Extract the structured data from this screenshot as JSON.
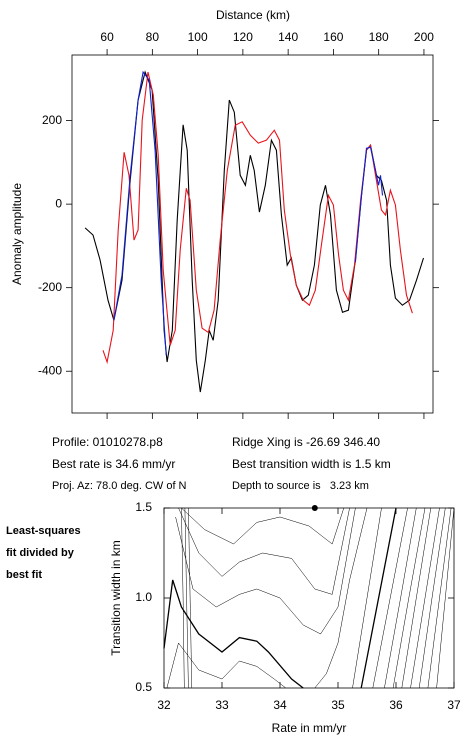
{
  "chart_data": [
    {
      "type": "line",
      "x_label": "Distance (km)",
      "y_label": "Anomaly amplitude",
      "xlim": [
        44.5,
        204
      ],
      "ylim": [
        -500,
        357
      ],
      "xticks": [
        60,
        80,
        100,
        120,
        140,
        160,
        180,
        200
      ],
      "yticks": [
        -400,
        -200,
        0,
        200
      ],
      "series": [
        {
          "color": "#000000",
          "x": [
            50.3,
            53.8,
            56.9,
            60.4,
            63,
            66.6,
            70.2,
            73.7,
            76.8,
            79.9,
            82.6,
            85.2,
            86.5,
            88.8,
            91,
            93.6,
            95.4,
            97.6,
            99.4,
            101.2,
            103.4,
            105.1,
            106.9,
            109.1,
            111.8,
            114,
            116.2,
            118.8,
            121.1,
            123.3,
            125,
            127.3,
            129.9,
            132.6,
            134.8,
            137,
            139.6,
            141.4,
            143.6,
            146.3,
            148.9,
            151.6,
            154.2,
            156.5,
            158.7,
            161.3,
            164,
            166.6,
            169.7,
            172.4,
            174.6,
            176.4,
            179,
            181.2,
            183.5,
            185.2,
            187.4,
            190.5,
            193.6,
            196.7,
            199.8
          ],
          "values": [
            -57,
            -74,
            -134,
            -230,
            -278,
            -182,
            57,
            249,
            316,
            273,
            57,
            -302,
            -378,
            -302,
            -38,
            190,
            129,
            -182,
            -374,
            -450,
            -374,
            -302,
            -326,
            -230,
            81,
            249,
            220,
            69,
            45,
            117,
            81,
            -19,
            45,
            153,
            129,
            -26,
            -146,
            -129,
            -194,
            -230,
            -218,
            -146,
            -2,
            45,
            -26,
            -206,
            -259,
            -254,
            -134,
            21,
            129,
            141,
            69,
            57,
            9,
            -146,
            -225,
            -242,
            -230,
            -182,
            -129
          ]
        },
        {
          "color": "#e8141c",
          "x": [
            58.2,
            60,
            62.7,
            64.9,
            67.5,
            69.7,
            71.9,
            73.7,
            75.5,
            78.1,
            80.4,
            82.6,
            84.8,
            87.9,
            90.1,
            92.3,
            95,
            96.7,
            99.4,
            102,
            104.7,
            107.3,
            110,
            113.1,
            116.6,
            119.7,
            123.3,
            126.8,
            130.4,
            133.9,
            136.2,
            138.3,
            141,
            143.6,
            146.7,
            149.4,
            152,
            154.7,
            157.8,
            160,
            162.3,
            164.4,
            166.6,
            169.3,
            172,
            174.6,
            176.4,
            179,
            181.2,
            183,
            185.2,
            187.4,
            189.6,
            192.3,
            194.9
          ],
          "values": [
            -350,
            -378,
            -302,
            -62,
            124,
            69,
            -86,
            -62,
            201,
            316,
            261,
            117,
            -158,
            -338,
            -302,
            -110,
            38,
            9,
            -206,
            -297,
            -307,
            -254,
            -86,
            81,
            189,
            197,
            165,
            146,
            153,
            177,
            153,
            -14,
            -122,
            -194,
            -230,
            -242,
            -206,
            -98,
            21,
            -2,
            -122,
            -206,
            -230,
            -146,
            9,
            129,
            141,
            57,
            -14,
            -26,
            33,
            -2,
            -110,
            -218,
            -261
          ]
        },
        {
          "color": "#1020d0",
          "x": [
            63,
            66.6,
            70.2,
            73.7,
            75.9,
            78.6,
            81.2,
            83.9,
            86.1,
            null,
            169.7,
            172.4,
            174.6,
            176.4,
            178.6,
            179.9,
            180.8,
            181.7
          ],
          "values": [
            -278,
            -170,
            69,
            249,
            316,
            297,
            129,
            -182,
            -362,
            null,
            -139,
            21,
            134,
            136,
            81,
            45,
            69,
            21
          ]
        }
      ]
    },
    {
      "type": "contour",
      "x_label": "Rate in mm/yr",
      "y_label": "Transition width in km",
      "xlim": [
        32,
        37
      ],
      "ylim": [
        0.5,
        1.5
      ],
      "xticks": [
        32,
        33,
        34,
        35,
        36,
        37
      ],
      "yticks": [
        0.5,
        {
          "value": 1,
          "label": "1.0"
        },
        1.5
      ],
      "best_point": {
        "x": 34.6,
        "y": 1.5
      },
      "contours": [
        {
          "bold": false,
          "x": [
            32.3,
            32.7,
            33.2,
            33.6,
            34.0,
            34.5,
            34.9,
            35.1
          ],
          "y": [
            1.5,
            1.38,
            1.3,
            1.42,
            1.45,
            1.4,
            1.3,
            1.5
          ]
        },
        {
          "bold": false,
          "x": [
            32.25,
            32.6,
            33.0,
            33.3,
            33.7,
            34.2,
            34.6,
            34.9,
            35.2
          ],
          "y": [
            1.5,
            1.25,
            1.12,
            1.2,
            1.25,
            1.22,
            1.05,
            1.02,
            1.5
          ]
        },
        {
          "bold": false,
          "x": [
            32.2,
            32.5,
            32.9,
            33.3,
            33.6,
            34.0,
            34.4,
            34.7,
            35.0,
            35.3
          ],
          "y": [
            1.45,
            1.05,
            0.95,
            1.02,
            1.05,
            1.0,
            0.85,
            0.8,
            0.95,
            1.5
          ]
        },
        {
          "bold": true,
          "x": [
            32.0,
            32.15,
            32.3,
            32.6,
            33.0,
            33.3,
            33.6,
            33.8,
            34.2,
            34.4
          ],
          "y": [
            0.72,
            1.1,
            0.95,
            0.8,
            0.7,
            0.78,
            0.76,
            0.7,
            0.55,
            0.5
          ]
        },
        {
          "bold": false,
          "x": [
            32.05,
            32.25,
            32.6,
            33.0,
            33.3,
            33.6,
            33.9,
            34.1
          ],
          "y": [
            0.5,
            0.75,
            0.6,
            0.55,
            0.65,
            0.62,
            0.55,
            0.5
          ]
        },
        {
          "bold": false,
          "x": [
            34.6,
            34.8,
            35.0,
            35.2,
            35.5
          ],
          "y": [
            0.5,
            0.58,
            0.75,
            1.1,
            1.5
          ]
        },
        {
          "bold": false,
          "x": [
            32.3,
            32.33,
            32.35
          ],
          "y": [
            1.5,
            1.0,
            0.5
          ]
        },
        {
          "bold": false,
          "x": [
            32.36,
            32.39,
            32.42
          ],
          "y": [
            1.5,
            1.0,
            0.5
          ]
        },
        {
          "bold": false,
          "x": [
            32.42,
            32.45,
            32.48
          ],
          "y": [
            1.5,
            1.0,
            0.5
          ]
        },
        {
          "bold": false,
          "x": [
            35.25,
            35.5,
            35.75
          ],
          "y": [
            0.5,
            1.0,
            1.5
          ]
        },
        {
          "bold": true,
          "x": [
            35.4,
            35.7,
            36.0
          ],
          "y": [
            0.5,
            1.0,
            1.5
          ]
        },
        {
          "bold": false,
          "x": [
            35.6,
            35.9,
            36.2
          ],
          "y": [
            0.5,
            1.0,
            1.5
          ]
        },
        {
          "bold": false,
          "x": [
            35.8,
            36.08,
            36.35
          ],
          "y": [
            0.5,
            1.0,
            1.5
          ]
        },
        {
          "bold": false,
          "x": [
            35.95,
            36.22,
            36.5
          ],
          "y": [
            0.5,
            1.0,
            1.5
          ]
        },
        {
          "bold": false,
          "x": [
            36.1,
            36.35,
            36.6
          ],
          "y": [
            0.5,
            1.0,
            1.5
          ]
        },
        {
          "bold": false,
          "x": [
            36.25,
            36.5,
            36.75
          ],
          "y": [
            0.5,
            1.0,
            1.5
          ]
        },
        {
          "bold": false,
          "x": [
            36.4,
            36.62,
            36.85
          ],
          "y": [
            0.5,
            1.0,
            1.5
          ]
        },
        {
          "bold": false,
          "x": [
            36.55,
            36.75,
            36.95
          ],
          "y": [
            0.5,
            1.0,
            1.5
          ]
        },
        {
          "bold": false,
          "x": [
            36.7,
            36.85,
            37.0
          ],
          "y": [
            0.5,
            1.0,
            1.5
          ]
        }
      ]
    }
  ],
  "info": {
    "lines": [
      "Profile: 01010278.p8",
      "Best rate is 34.6 mm/yr",
      "Proj. Az: 78.0 deg. CW of N",
      "Ridge Xing is -26.69 346.40",
      "Best transition width is 1.5 km",
      "Depth to source is   3.23 km"
    ]
  },
  "side_note": {
    "lines": [
      "Least-squares",
      "fit divided by",
      "best fit"
    ]
  }
}
